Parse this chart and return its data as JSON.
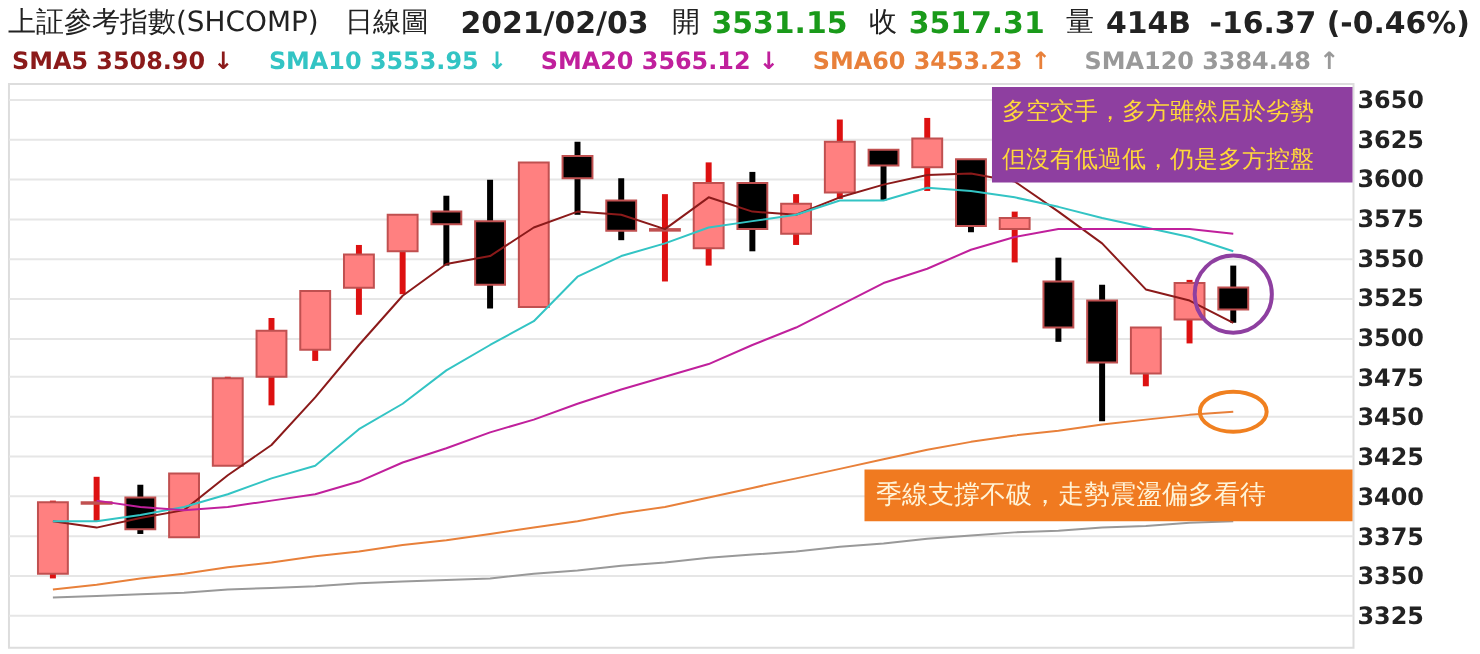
{
  "chart_data": {
    "type": "candlestick",
    "title": "上証參考指數(SHCOMP)",
    "annotations": [
      "日線圖",
      "2021/02/03",
      "開",
      "3531.15",
      "收",
      "3517.31",
      "量",
      "414B",
      "-16.37 (-0.46%)",
      "多空交手，多方雖然居於劣勢",
      "但沒有低過低，仍是多方控盤",
      "季線支撐不破，走勢震盪偏多看待"
    ],
    "categories": [
      null,
      null,
      null,
      null,
      null,
      null,
      null,
      null,
      null,
      null,
      null,
      null,
      null,
      null,
      null,
      null,
      null,
      null,
      null,
      null,
      null,
      null,
      null,
      null,
      null,
      null,
      null,
      null
    ],
    "ohlc": [
      [
        3351,
        3397,
        3348,
        3396
      ],
      [
        3395,
        3412,
        3384,
        3396
      ],
      [
        3399,
        3407,
        3376,
        3379
      ],
      [
        3374,
        3414,
        3374,
        3414
      ],
      [
        3419,
        3475,
        3419,
        3474
      ],
      [
        3475,
        3512,
        3457,
        3504
      ],
      [
        3492,
        3529,
        3485,
        3529
      ],
      [
        3531,
        3558,
        3514,
        3552
      ],
      [
        3554,
        3577,
        3527,
        3577
      ],
      [
        3579,
        3589,
        3545,
        3571
      ],
      [
        3573,
        3599,
        3518,
        3533
      ],
      [
        3519,
        3610,
        3519,
        3610
      ],
      [
        3614,
        3623,
        3577,
        3600
      ],
      [
        3586,
        3600,
        3561,
        3567
      ],
      [
        3567,
        3590,
        3535,
        3568
      ],
      [
        3556,
        3610,
        3545,
        3597
      ],
      [
        3597,
        3604,
        3554,
        3568
      ],
      [
        3565,
        3590,
        3558,
        3584
      ],
      [
        3591,
        3637,
        3587,
        3623
      ],
      [
        3618,
        3618,
        3586,
        3608
      ],
      [
        3607,
        3638,
        3592,
        3625
      ],
      [
        3612,
        3612,
        3566,
        3570
      ],
      [
        3568,
        3579,
        3547,
        3575
      ],
      [
        3535,
        3550,
        3497,
        3506
      ],
      [
        3523,
        3533,
        3447,
        3484
      ],
      [
        3477,
        3506,
        3469,
        3506
      ],
      [
        3511,
        3536,
        3496,
        3534
      ],
      [
        3531.15,
        3545,
        3509,
        3517.31
      ]
    ],
    "colors": [
      "#ff8080",
      "#ff8080",
      "#000000",
      "#ff8080",
      "#ff8080",
      "#ff8080",
      "#ff8080",
      "#ff8080",
      "#ff8080",
      "#000000",
      "#000000",
      "#ff8080",
      "#000000",
      "#000000",
      "#ff8080",
      "#ff8080",
      "#000000",
      "#ff8080",
      "#ff8080",
      "#000000",
      "#ff8080",
      "#000000",
      "#ff8080",
      "#000000",
      "#000000",
      "#ff8080",
      "#ff8080",
      "#000000"
    ],
    "series": [
      {
        "name": "SMA5 3508.90 ↓",
        "type": "line",
        "color": "#8b1a1a",
        "values": [
          3384,
          3380,
          3386,
          3391,
          3413,
          3432,
          3462,
          3495,
          3526,
          3546,
          3551,
          3569,
          3579,
          3577,
          3568,
          3588,
          3579,
          3577,
          3588,
          3596,
          3602,
          3603,
          3598,
          3579,
          3559,
          3530,
          3523,
          3509
        ]
      },
      {
        "name": "SMA10 3553.95 ↓",
        "type": "line",
        "color": "#33c4c4",
        "values": [
          3384,
          3384,
          3388,
          3393,
          3401,
          3411,
          3419,
          3442,
          3458,
          3479,
          3495,
          3510,
          3538,
          3551,
          3559,
          3569,
          3573,
          3577,
          3586,
          3586,
          3594,
          3592,
          3588,
          3582,
          3575,
          3569,
          3563,
          3554
        ]
      },
      {
        "name": "SMA20 3565.12 ↓",
        "type": "line",
        "color": "#c0209c",
        "values": [
          null,
          3397,
          3393,
          3391,
          3393,
          3397,
          3401,
          3409,
          3421,
          3430,
          3440,
          3448,
          3458,
          3467,
          3475,
          3483,
          3495,
          3506,
          3520,
          3534,
          3543,
          3555,
          3563,
          3568,
          3568,
          3568,
          3568,
          3565
        ]
      },
      {
        "name": "SMA60 3453.23 ↑",
        "type": "line",
        "color": "#e8803a",
        "values": [
          3341,
          3344,
          3348,
          3351,
          3355,
          3358,
          3362,
          3365,
          3369,
          3372,
          3376,
          3380,
          3384,
          3389,
          3393,
          3399,
          3405,
          3411,
          3417,
          3423,
          3429,
          3434,
          3438,
          3441,
          3445,
          3448,
          3451,
          3453
        ]
      },
      {
        "name": "SMA120 3384.48 ↑",
        "type": "line",
        "color": "#999999",
        "values": [
          3336,
          3337,
          3338,
          3339,
          3341,
          3342,
          3343,
          3345,
          3346,
          3347,
          3348,
          3351,
          3353,
          3356,
          3358,
          3361,
          3363,
          3365,
          3368,
          3370,
          3373,
          3375,
          3377,
          3378,
          3380,
          3381,
          3383,
          3384
        ]
      }
    ],
    "ylim": [
      3305,
      3660
    ],
    "yticks": [
      3325,
      3350,
      3375,
      3400,
      3425,
      3450,
      3475,
      3500,
      3525,
      3550,
      3575,
      3600,
      3625,
      3650
    ],
    "grid": "y",
    "legend": "top",
    "tick_labels": "y"
  }
}
